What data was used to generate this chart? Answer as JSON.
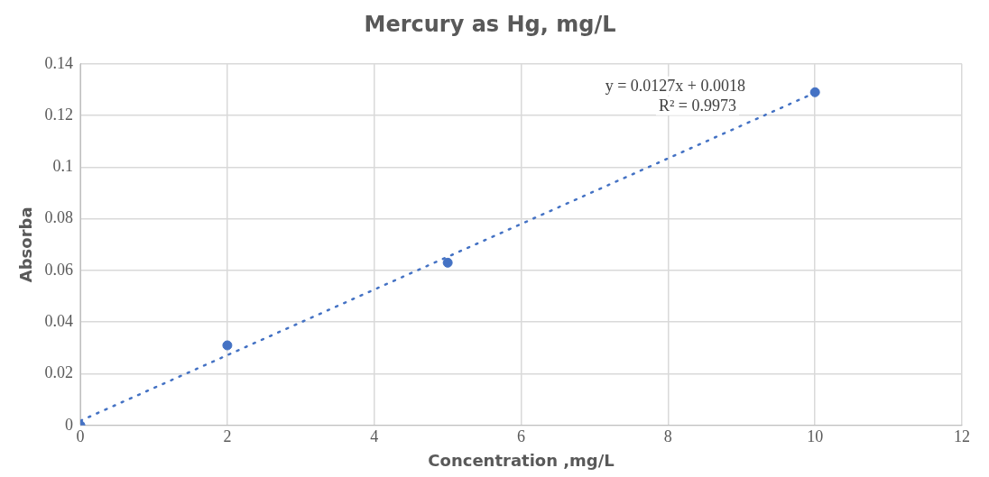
{
  "chart_data": {
    "type": "scatter",
    "title": "Mercury as Hg, mg/L",
    "xlabel": "Concentration ,mg/L",
    "ylabel": "Absorba",
    "x": [
      0,
      2,
      5,
      10
    ],
    "series": [
      {
        "color": "#4472c4",
        "values": [
          0,
          0.031,
          0.063,
          0.129
        ]
      },
      {
        "type": "line",
        "color": "#4472c4",
        "x": [
          0,
          10
        ],
        "values": [
          0.0018,
          0.1288
        ],
        "line_style": "dotted",
        "marker": "none"
      }
    ],
    "annotations": [
      "y = 0.0127x + 0.0018",
      "R² = 0.9973"
    ],
    "xlim": [
      0,
      12
    ],
    "xticks": [
      0,
      2,
      4,
      6,
      8,
      10,
      12
    ],
    "ylim": [
      0,
      0.14
    ],
    "yticks": [
      0,
      0.02,
      0.04,
      0.06,
      0.08,
      0.1,
      0.12,
      0.14
    ],
    "grid": true,
    "marker": "circle"
  }
}
